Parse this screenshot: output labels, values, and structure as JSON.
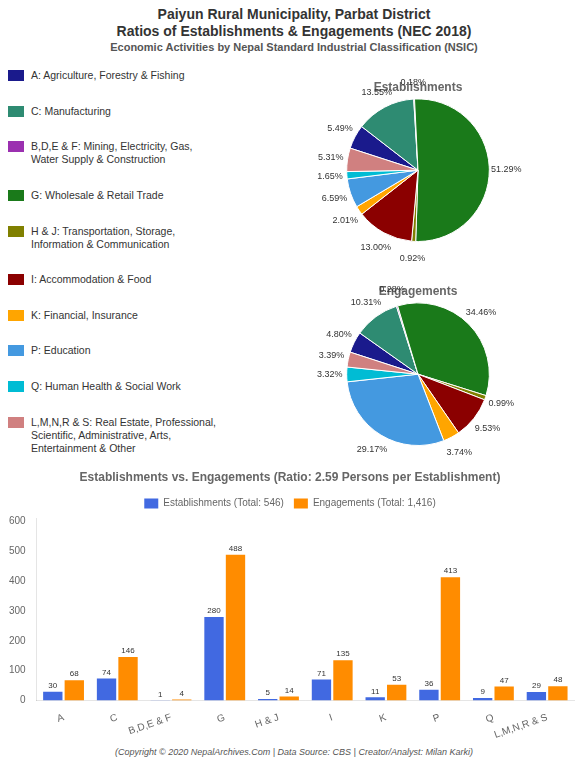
{
  "title": [
    "Paiyun Rural Municipality, Parbat District",
    "Ratios of Establishments & Engagements (NEC 2018)"
  ],
  "subtitle": "Economic Activities by Nepal Standard Industrial Classification (NSIC)",
  "annotations": [
    "(Copyright © 2020 NepalArchives.Com | Data Source: CBS | Creator/Analyst: Milan Karki)"
  ],
  "chart_data": [
    {
      "type": "pie",
      "title": "Establishments",
      "categories": [
        "A: Agriculture, Forestry & Fishing",
        "C: Manufacturing",
        "B,D,E & F: Mining, Electricity, Gas,\nWater Supply & Construction",
        "G: Wholesale & Retail Trade",
        "H & J: Transportation, Storage,\nInformation & Communication",
        "I: Accommodation & Food",
        "K: Financial, Insurance",
        "P: Education",
        "Q: Human Health & Social Work",
        "L,M,N,R & S: Real Estate, Professional,\nScientific, Administrative, Arts,\nEntertainment & Other"
      ],
      "values": [
        5.49,
        13.55,
        0.18,
        51.29,
        0.92,
        13.0,
        2.01,
        6.59,
        1.65,
        5.31
      ],
      "value_labels": [
        "5.49%",
        "13.55%",
        "0.18%",
        "51.29%",
        "0.92%",
        "13.00%",
        "2.01%",
        "6.59%",
        "1.65%",
        "5.31%"
      ],
      "colors": [
        "#1a1a8c",
        "#2e8b72",
        "#9b30b0",
        "#1a7a1a",
        "#808000",
        "#8b0000",
        "#ffa500",
        "#4499e0",
        "#00bcd4",
        "#d08080"
      ],
      "data_labels": true,
      "legend": "left"
    },
    {
      "type": "pie",
      "title": "Engagements",
      "categories": [
        "A: Agriculture, Forestry & Fishing",
        "C: Manufacturing",
        "B,D,E & F: Mining, Electricity, Gas,\nWater Supply & Construction",
        "G: Wholesale & Retail Trade",
        "H & J: Transportation, Storage,\nInformation & Communication",
        "I: Accommodation & Food",
        "K: Financial, Insurance",
        "P: Education",
        "Q: Human Health & Social Work",
        "L,M,N,R & S: Real Estate, Professional,\nScientific, Administrative, Arts,\nEntertainment & Other"
      ],
      "values": [
        4.8,
        10.31,
        0.28,
        34.46,
        0.99,
        9.53,
        3.74,
        29.17,
        3.32,
        3.39
      ],
      "value_labels": [
        "4.80%",
        "10.31%",
        "0.28%",
        "34.46%",
        "0.99%",
        "9.53%",
        "3.74%",
        "29.17%",
        "3.32%",
        "3.39%"
      ],
      "colors": [
        "#1a1a8c",
        "#2e8b72",
        "#9b30b0",
        "#1a7a1a",
        "#808000",
        "#8b0000",
        "#ffa500",
        "#4499e0",
        "#00bcd4",
        "#d08080"
      ],
      "data_labels": true
    },
    {
      "type": "bar",
      "title": "Establishments vs. Engagements (Ratio: 2.59 Persons per Establishment)",
      "categories": [
        "A",
        "C",
        "B,D,E & F",
        "G",
        "H & J",
        "I",
        "K",
        "P",
        "Q",
        "L,M,N,R & S"
      ],
      "series": [
        {
          "name": "Establishments (Total: 546)",
          "color": "#4169e1",
          "values": [
            30,
            74,
            1,
            280,
            5,
            71,
            11,
            36,
            9,
            29
          ]
        },
        {
          "name": "Engagements (Total: 1,416)",
          "color": "#ff8c00",
          "values": [
            68,
            146,
            4,
            488,
            14,
            135,
            53,
            413,
            47,
            48
          ]
        }
      ],
      "ylim": [
        0,
        610
      ],
      "yticks": [
        0,
        100,
        200,
        300,
        400,
        500,
        600
      ],
      "grid": false,
      "legend": "top",
      "data_labels": true
    }
  ]
}
